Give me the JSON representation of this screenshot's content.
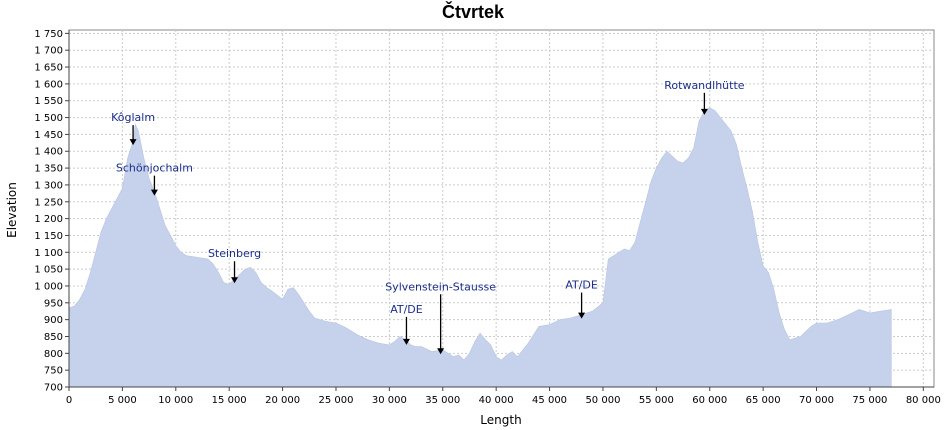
{
  "chart_data": {
    "type": "area",
    "title": "Čtvrtek",
    "xlabel": "Length",
    "ylabel": "Elevation",
    "xlim": [
      0,
      81000
    ],
    "ylim": [
      700,
      1760
    ],
    "grid": true,
    "colors": {
      "fill": "#c6d1ec",
      "grid": "#cccccc",
      "annotation": "#1c2e8a",
      "plot_bg": "#ffffff"
    },
    "x_ticks": [
      0,
      5000,
      10000,
      15000,
      20000,
      25000,
      30000,
      35000,
      40000,
      45000,
      50000,
      55000,
      60000,
      65000,
      70000,
      75000,
      80000
    ],
    "x_tick_labels": [
      "0",
      "5 000",
      "10 000",
      "15 000",
      "20 000",
      "25 000",
      "30 000",
      "35 000",
      "40 000",
      "45 000",
      "50 000",
      "55 000",
      "60 000",
      "65 000",
      "70 000",
      "75 000",
      "80 000"
    ],
    "y_ticks": [
      700,
      750,
      800,
      850,
      900,
      950,
      1000,
      1050,
      1100,
      1150,
      1200,
      1250,
      1300,
      1350,
      1400,
      1450,
      1500,
      1550,
      1600,
      1650,
      1700,
      1750
    ],
    "y_tick_labels": [
      "700",
      "750",
      "800",
      "850",
      "900",
      "950",
      "1 000",
      "1 050",
      "1 100",
      "1 150",
      "1 200",
      "1 250",
      "1 300",
      "1 350",
      "1 400",
      "1 450",
      "1 500",
      "1 550",
      "1 600",
      "1 650",
      "1 700",
      "1 750"
    ],
    "series": [
      {
        "x": [
          0,
          500,
          1000,
          1500,
          2000,
          2500,
          3000,
          3500,
          4000,
          4500,
          5000,
          5500,
          6000,
          6200,
          6500,
          7000,
          7500,
          8000,
          8500,
          9000,
          9500,
          10000,
          10500,
          11000,
          12000,
          13000,
          13500,
          14000,
          14500,
          15000,
          15500,
          16000,
          16500,
          17000,
          17500,
          18000,
          18500,
          19000,
          20000,
          20500,
          21000,
          21500,
          22000,
          22500,
          23000,
          24000,
          25000,
          26000,
          27000,
          28000,
          29000,
          30000,
          30500,
          31000,
          31500,
          32000,
          32500,
          33000,
          34000,
          35000,
          35500,
          36000,
          36500,
          37000,
          37500,
          38000,
          38500,
          39000,
          39500,
          40000,
          40500,
          41000,
          41500,
          42000,
          43000,
          44000,
          45000,
          46000,
          47000,
          47500,
          48000,
          49000,
          50000,
          50500,
          51000,
          51500,
          52000,
          52500,
          53000,
          53500,
          54000,
          54500,
          55000,
          55500,
          56000,
          56500,
          57000,
          57500,
          58000,
          58500,
          59000,
          59500,
          60000,
          60500,
          61000,
          61500,
          62000,
          62500,
          63000,
          63500,
          64000,
          64500,
          65000,
          65500,
          66000,
          66500,
          67000,
          67500,
          68000,
          68500,
          69000,
          69500,
          70000,
          71000,
          72000,
          73000,
          74000,
          75000,
          76000,
          77000
        ],
        "y": [
          935,
          940,
          960,
          990,
          1040,
          1100,
          1160,
          1200,
          1230,
          1260,
          1290,
          1380,
          1430,
          1480,
          1460,
          1380,
          1320,
          1280,
          1230,
          1180,
          1150,
          1120,
          1100,
          1090,
          1085,
          1080,
          1065,
          1040,
          1010,
          1005,
          1020,
          1035,
          1050,
          1055,
          1040,
          1010,
          995,
          985,
          960,
          990,
          995,
          975,
          950,
          925,
          905,
          895,
          890,
          875,
          855,
          840,
          830,
          825,
          835,
          850,
          840,
          825,
          820,
          820,
          805,
          810,
          800,
          790,
          795,
          780,
          800,
          835,
          860,
          840,
          825,
          790,
          780,
          795,
          805,
          790,
          830,
          880,
          885,
          900,
          905,
          910,
          915,
          925,
          950,
          1080,
          1090,
          1100,
          1110,
          1105,
          1130,
          1190,
          1250,
          1310,
          1350,
          1380,
          1400,
          1385,
          1370,
          1365,
          1380,
          1410,
          1490,
          1520,
          1530,
          1520,
          1500,
          1480,
          1460,
          1420,
          1350,
          1290,
          1220,
          1130,
          1060,
          1040,
          990,
          920,
          870,
          840,
          845,
          850,
          865,
          880,
          890,
          890,
          900,
          915,
          930,
          920,
          925,
          930
        ]
      }
    ],
    "annotations": [
      {
        "label": "Kôglalm",
        "x": 6000
      },
      {
        "label": "Schönjochalm",
        "x": 8000
      },
      {
        "label": "Steinberg",
        "x": 15500
      },
      {
        "label": "AT/DE",
        "x": 31600
      },
      {
        "label": "Sylvenstein-Stausse",
        "x": 34800
      },
      {
        "label": "AT/DE",
        "x": 48000
      },
      {
        "label": "Rotwandlhütte",
        "x": 59500
      }
    ]
  }
}
